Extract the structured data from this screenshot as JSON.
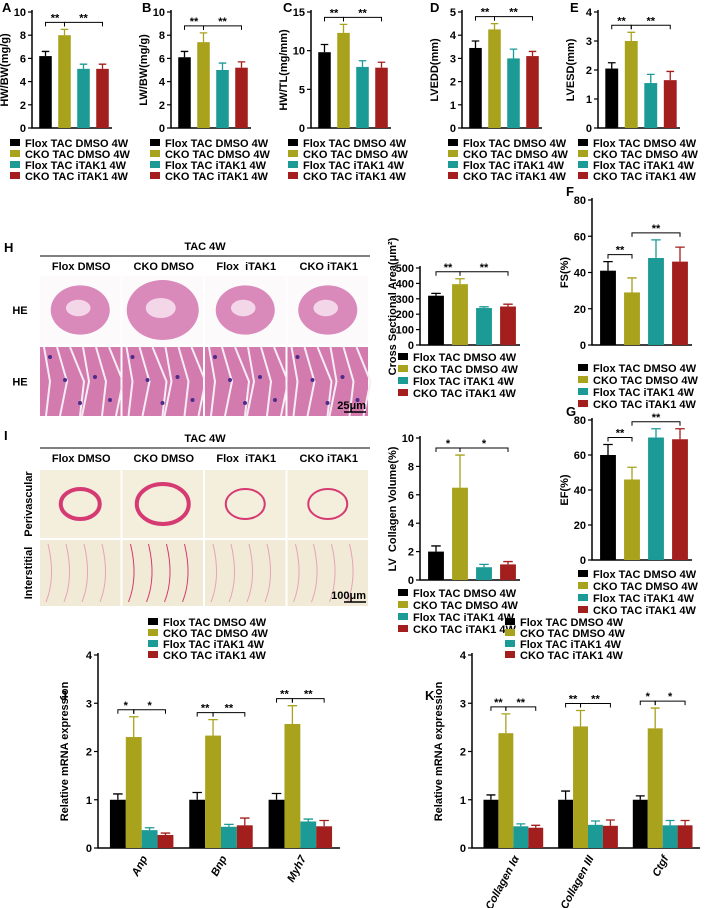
{
  "chart_data": [
    {
      "type": "bar",
      "panel": "A",
      "y_label": "HW/BW(mg/g)",
      "ylim": [
        0,
        10
      ],
      "yticks": [
        0,
        2,
        4,
        6,
        8,
        10
      ],
      "series": [
        {
          "name": "Flox TAC DMSO 4W",
          "color": "#000000",
          "values": [
            6.2
          ],
          "errors": [
            0.4
          ]
        },
        {
          "name": "CKO TAC DMSO 4W",
          "color": "#a8a21c",
          "values": [
            8.0
          ],
          "errors": [
            0.5
          ]
        },
        {
          "name": "Flox TAC iTAK1 4W",
          "color": "#1b9a96",
          "values": [
            5.1
          ],
          "errors": [
            0.4
          ]
        },
        {
          "name": "CKO TAC iTAK1 4W",
          "color": "#a31f1d",
          "values": [
            5.1
          ],
          "errors": [
            0.4
          ]
        }
      ],
      "comparisons": [
        {
          "label": "**",
          "bars": [
            0,
            1
          ]
        },
        {
          "label": "**",
          "bars": [
            1,
            3
          ]
        }
      ]
    },
    {
      "type": "bar",
      "panel": "B",
      "y_label": "LW/BW(mg/g)",
      "ylim": [
        0,
        10
      ],
      "yticks": [
        0,
        2,
        4,
        6,
        8,
        10
      ],
      "series": [
        {
          "name": "Flox TAC DMSO 4W",
          "color": "#000000",
          "values": [
            6.1
          ],
          "errors": [
            0.5
          ]
        },
        {
          "name": "CKO TAC DMSO 4W",
          "color": "#a8a21c",
          "values": [
            7.4
          ],
          "errors": [
            0.8
          ]
        },
        {
          "name": "Flox TAC iTAK1 4W",
          "color": "#1b9a96",
          "values": [
            5.0
          ],
          "errors": [
            0.6
          ]
        },
        {
          "name": "CKO TAC iTAK1 4W",
          "color": "#a31f1d",
          "values": [
            5.2
          ],
          "errors": [
            0.5
          ]
        }
      ],
      "comparisons": [
        {
          "label": "**",
          "bars": [
            0,
            1
          ]
        },
        {
          "label": "**",
          "bars": [
            1,
            3
          ]
        }
      ]
    },
    {
      "type": "bar",
      "panel": "C",
      "y_label": "HW/TL(mg/mm)",
      "ylim": [
        0,
        15
      ],
      "yticks": [
        0,
        5,
        10,
        15
      ],
      "series": [
        {
          "name": "Flox TAC DMSO 4W",
          "color": "#000000",
          "values": [
            9.8
          ],
          "errors": [
            1.0
          ]
        },
        {
          "name": "CKO TAC DMSO 4W",
          "color": "#a8a21c",
          "values": [
            12.3
          ],
          "errors": [
            1.1
          ]
        },
        {
          "name": "Flox TAC iTAK1 4W",
          "color": "#1b9a96",
          "values": [
            7.9
          ],
          "errors": [
            0.8
          ]
        },
        {
          "name": "CKO TAC iTAK1 4W",
          "color": "#a31f1d",
          "values": [
            7.8
          ],
          "errors": [
            0.7
          ]
        }
      ],
      "comparisons": [
        {
          "label": "**",
          "bars": [
            0,
            1
          ]
        },
        {
          "label": "**",
          "bars": [
            1,
            3
          ]
        }
      ]
    },
    {
      "type": "bar",
      "panel": "D",
      "y_label": "LVEDD(mm)",
      "ylim": [
        0,
        5
      ],
      "yticks": [
        0,
        1,
        2,
        3,
        4,
        5
      ],
      "series": [
        {
          "name": "Flox TAC DMSO 4W",
          "color": "#000000",
          "values": [
            3.45
          ],
          "errors": [
            0.3
          ]
        },
        {
          "name": "CKO TAC DMSO 4W",
          "color": "#a8a21c",
          "values": [
            4.25
          ],
          "errors": [
            0.25
          ]
        },
        {
          "name": "Flox TAC iTAK1 4W",
          "color": "#1b9a96",
          "values": [
            3.0
          ],
          "errors": [
            0.4
          ]
        },
        {
          "name": "CKO TAC iTAK1 4W",
          "color": "#a31f1d",
          "values": [
            3.1
          ],
          "errors": [
            0.2
          ]
        }
      ],
      "comparisons": [
        {
          "label": "**",
          "bars": [
            0,
            1
          ]
        },
        {
          "label": "**",
          "bars": [
            1,
            3
          ]
        }
      ]
    },
    {
      "type": "bar",
      "panel": "E",
      "y_label": "LVESD(mm)",
      "ylim": [
        0,
        4
      ],
      "yticks": [
        0,
        1,
        2,
        3,
        4
      ],
      "series": [
        {
          "name": "Flox TAC DMSO 4W",
          "color": "#000000",
          "values": [
            2.05
          ],
          "errors": [
            0.2
          ]
        },
        {
          "name": "CKO TAC DMSO 4W",
          "color": "#a8a21c",
          "values": [
            3.0
          ],
          "errors": [
            0.3
          ]
        },
        {
          "name": "Flox TAC iTAK1 4W",
          "color": "#1b9a96",
          "values": [
            1.55
          ],
          "errors": [
            0.3
          ]
        },
        {
          "name": "CKO TAC iTAK1 4W",
          "color": "#a31f1d",
          "values": [
            1.65
          ],
          "errors": [
            0.3
          ]
        }
      ],
      "comparisons": [
        {
          "label": "**",
          "bars": [
            0,
            1
          ]
        },
        {
          "label": "**",
          "bars": [
            1,
            3
          ]
        }
      ]
    },
    {
      "type": "bar",
      "y_label": "Cross Sectional Area(μm²)",
      "ylim": [
        0,
        500
      ],
      "yticks": [
        0,
        100,
        200,
        300,
        400,
        500
      ],
      "series": [
        {
          "name": "Flox TAC DMSO 4W",
          "color": "#000000",
          "values": [
            320
          ],
          "errors": [
            15
          ]
        },
        {
          "name": "CKO TAC DMSO 4W",
          "color": "#a8a21c",
          "values": [
            395
          ],
          "errors": [
            35
          ]
        },
        {
          "name": "Flox TAC iTAK1 4W",
          "color": "#1b9a96",
          "values": [
            240
          ],
          "errors": [
            8
          ]
        },
        {
          "name": "CKO TAC iTAK1 4W",
          "color": "#a31f1d",
          "values": [
            250
          ],
          "errors": [
            15
          ]
        }
      ],
      "comparisons": [
        {
          "label": "**",
          "bars": [
            0,
            1
          ]
        },
        {
          "label": "**",
          "bars": [
            1,
            3
          ]
        }
      ]
    },
    {
      "type": "bar",
      "panel": "F",
      "y_label": "FS(%)",
      "ylim": [
        0,
        80
      ],
      "yticks": [
        0,
        20,
        40,
        60,
        80
      ],
      "series": [
        {
          "name": "Flox TAC DMSO 4W",
          "color": "#000000",
          "values": [
            41
          ],
          "errors": [
            5
          ]
        },
        {
          "name": "CKO TAC DMSO 4W",
          "color": "#a8a21c",
          "values": [
            29
          ],
          "errors": [
            8
          ]
        },
        {
          "name": "Flox TAC iTAK1 4W",
          "color": "#1b9a96",
          "values": [
            48
          ],
          "errors": [
            10
          ]
        },
        {
          "name": "CKO TAC iTAK1 4W",
          "color": "#a31f1d",
          "values": [
            46
          ],
          "errors": [
            8
          ]
        }
      ],
      "comparisons": [
        {
          "label": "**",
          "bars": [
            0,
            1
          ]
        },
        {
          "label": "**",
          "bars": [
            1,
            3
          ]
        }
      ]
    },
    {
      "type": "bar",
      "y_label": "LV  Collagen Volume(%)",
      "ylim": [
        0,
        10
      ],
      "yticks": [
        0,
        2,
        4,
        6,
        8,
        10
      ],
      "series": [
        {
          "name": "Flox TAC DMSO 4W",
          "color": "#000000",
          "values": [
            2.0
          ],
          "errors": [
            0.4
          ]
        },
        {
          "name": "CKO TAC DMSO 4W",
          "color": "#a8a21c",
          "values": [
            6.5
          ],
          "errors": [
            2.3
          ]
        },
        {
          "name": "Flox TAC iTAK1 4W",
          "color": "#1b9a96",
          "values": [
            0.9
          ],
          "errors": [
            0.2
          ]
        },
        {
          "name": "CKO TAC iTAK1 4W",
          "color": "#a31f1d",
          "values": [
            1.1
          ],
          "errors": [
            0.2
          ]
        }
      ],
      "comparisons": [
        {
          "label": "*",
          "bars": [
            0,
            1
          ]
        },
        {
          "label": "*",
          "bars": [
            1,
            3
          ]
        }
      ]
    },
    {
      "type": "bar",
      "panel": "G",
      "y_label": "EF(%)",
      "ylim": [
        0,
        80
      ],
      "yticks": [
        0,
        20,
        40,
        60,
        80
      ],
      "series": [
        {
          "name": "Flox TAC DMSO 4W",
          "color": "#000000",
          "values": [
            60
          ],
          "errors": [
            6
          ]
        },
        {
          "name": "CKO TAC DMSO 4W",
          "color": "#a8a21c",
          "values": [
            46
          ],
          "errors": [
            7
          ]
        },
        {
          "name": "Flox TAC iTAK1 4W",
          "color": "#1b9a96",
          "values": [
            70
          ],
          "errors": [
            5
          ]
        },
        {
          "name": "CKO TAC iTAK1 4W",
          "color": "#a31f1d",
          "values": [
            69
          ],
          "errors": [
            6
          ]
        }
      ],
      "comparisons": [
        {
          "label": "**",
          "bars": [
            0,
            1
          ]
        },
        {
          "label": "**",
          "bars": [
            1,
            3
          ]
        }
      ]
    },
    {
      "type": "bar",
      "panel": "J",
      "y_label": "Relative mRNA expression",
      "ylim": [
        0,
        4
      ],
      "yticks": [
        0,
        1,
        2,
        3,
        4
      ],
      "categories": [
        "Anp",
        "Bnp",
        "Myh7"
      ],
      "series": [
        {
          "name": "Flox TAC DMSO 4W",
          "color": "#000000",
          "values": [
            1.0,
            1.0,
            1.0
          ],
          "errors": [
            0.12,
            0.15,
            0.13
          ]
        },
        {
          "name": "CKO TAC DMSO 4W",
          "color": "#a8a21c",
          "values": [
            2.3,
            2.33,
            2.57
          ],
          "errors": [
            0.42,
            0.33,
            0.38
          ]
        },
        {
          "name": "Flox TAC iTAK1 4W",
          "color": "#1b9a96",
          "values": [
            0.37,
            0.44,
            0.55
          ],
          "errors": [
            0.05,
            0.05,
            0.05
          ]
        },
        {
          "name": "CKO TAC iTAK1 4W",
          "color": "#a31f1d",
          "values": [
            0.27,
            0.47,
            0.45
          ],
          "errors": [
            0.04,
            0.15,
            0.12
          ]
        }
      ],
      "comparisons": [
        {
          "label": "*",
          "category": 0,
          "bars": [
            0,
            1
          ]
        },
        {
          "label": "*",
          "category": 0,
          "bars": [
            1,
            3
          ]
        },
        {
          "label": "**",
          "category": 1,
          "bars": [
            0,
            1
          ]
        },
        {
          "label": "**",
          "category": 1,
          "bars": [
            1,
            3
          ]
        },
        {
          "label": "**",
          "category": 2,
          "bars": [
            0,
            1
          ]
        },
        {
          "label": "**",
          "category": 2,
          "bars": [
            1,
            3
          ]
        }
      ]
    },
    {
      "type": "bar",
      "panel": "K",
      "y_label": "Relative mRNA expression",
      "ylim": [
        0,
        4
      ],
      "yticks": [
        0,
        1,
        2,
        3,
        4
      ],
      "categories": [
        "Collagen Iα",
        "Collagen III",
        "Ctgf"
      ],
      "series": [
        {
          "name": "Flox TAC DMSO 4W",
          "color": "#000000",
          "values": [
            1.0,
            1.0,
            1.0
          ],
          "errors": [
            0.1,
            0.18,
            0.08
          ]
        },
        {
          "name": "CKO TAC DMSO 4W",
          "color": "#a8a21c",
          "values": [
            2.38,
            2.52,
            2.48
          ],
          "errors": [
            0.4,
            0.33,
            0.42
          ]
        },
        {
          "name": "Flox TAC iTAK1 4W",
          "color": "#1b9a96",
          "values": [
            0.45,
            0.48,
            0.47
          ],
          "errors": [
            0.05,
            0.08,
            0.1
          ]
        },
        {
          "name": "CKO TAC iTAK1 4W",
          "color": "#a31f1d",
          "values": [
            0.42,
            0.46,
            0.47
          ],
          "errors": [
            0.05,
            0.12,
            0.1
          ]
        }
      ],
      "comparisons": [
        {
          "label": "**",
          "category": 0,
          "bars": [
            0,
            1
          ]
        },
        {
          "label": "**",
          "category": 0,
          "bars": [
            1,
            3
          ]
        },
        {
          "label": "**",
          "category": 1,
          "bars": [
            0,
            1
          ]
        },
        {
          "label": "**",
          "category": 1,
          "bars": [
            1,
            3
          ]
        },
        {
          "label": "*",
          "category": 2,
          "bars": [
            0,
            1
          ]
        },
        {
          "label": "*",
          "category": 2,
          "bars": [
            1,
            3
          ]
        }
      ]
    }
  ],
  "histology": [
    {
      "panel": "H",
      "title": "TAC 4W",
      "columns": [
        "Flox DMSO",
        "CKO DMSO",
        "Flox  iTAK1",
        "CKO iTAK1"
      ],
      "rows": [
        "HE",
        "HE"
      ],
      "scale": "25μm"
    },
    {
      "panel": "I",
      "title": "TAC 4W",
      "columns": [
        "Flox DMSO",
        "CKO DMSO",
        "Flox  iTAK1",
        "CKO iTAK1"
      ],
      "rows": [
        "Perivascular",
        "Interstitial"
      ],
      "scale": "100μm"
    }
  ]
}
